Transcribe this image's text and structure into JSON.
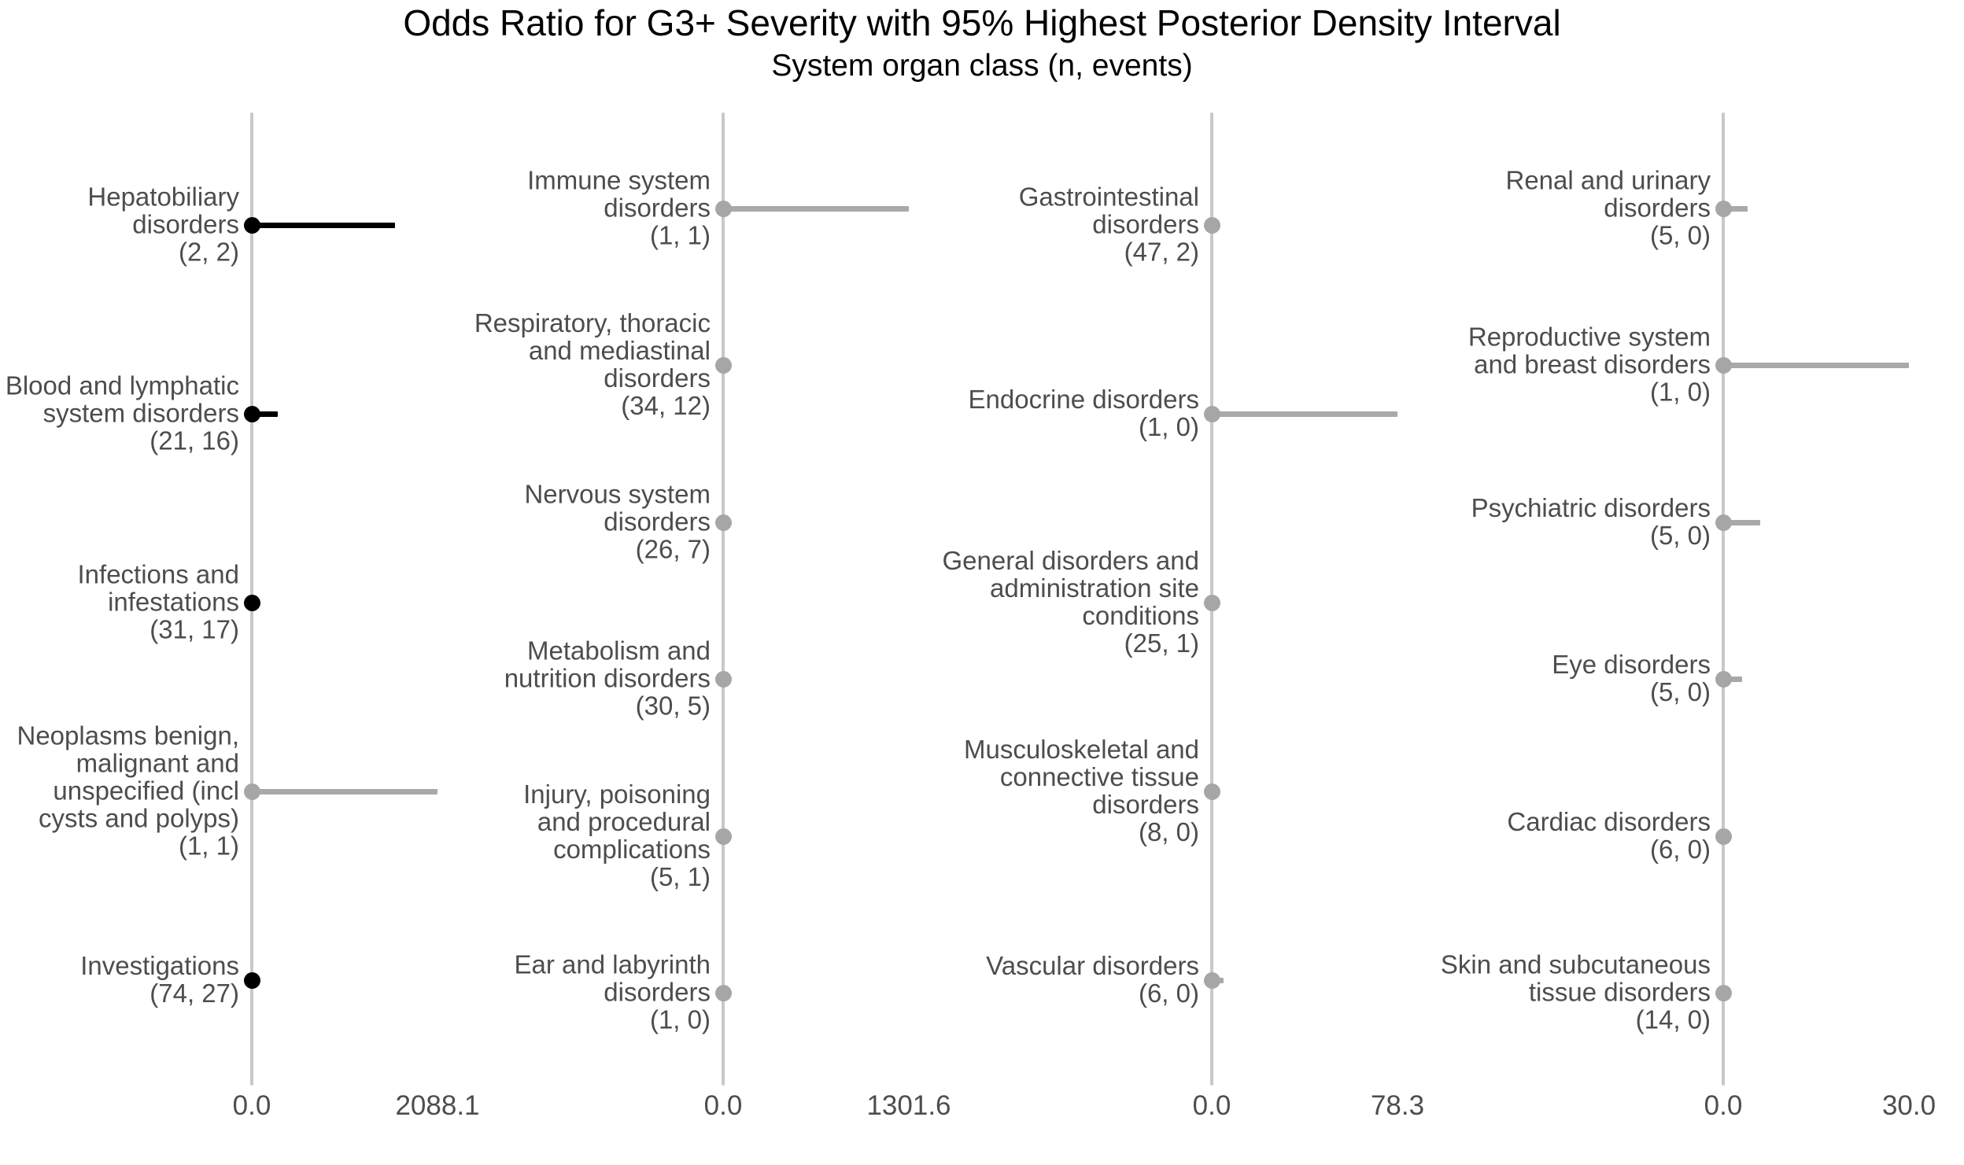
{
  "chart_data": {
    "type": "scatter",
    "variant": "forest-plot-dot-interval",
    "title": "Odds Ratio for G3+ Severity with 95% Highest Posterior Density Interval",
    "subtitle": "System organ class (n, events)",
    "x_tick_zero": "0.0",
    "xlabel": "",
    "ylabel": "",
    "grid": "off",
    "legend": "none",
    "note": "Four panels with independent x scales; each point sits at OR ~0 on the axis line with a one-sided 95% HPD interval extending right",
    "colors": {
      "point_black": "#000000",
      "point_gray": "#a6a6a6",
      "bar_gray": "#a9a9a9",
      "axis_line": "#c8c8c8",
      "label_text": "#4d4d4d"
    },
    "panels": [
      {
        "x_min": 0.0,
        "x_max": 2088.1,
        "x_max_label": "2088.1",
        "rows": [
          {
            "soc": "Hepatobiliary disorders",
            "n": 2,
            "events": 2,
            "or_point": 0.0,
            "hpd_upper": 1610,
            "color": "black",
            "label_lines": [
              "Hepatobiliary",
              "disorders",
              "(2, 2)"
            ]
          },
          {
            "soc": "Blood and lymphatic system disorders",
            "n": 21,
            "events": 16,
            "or_point": 0.0,
            "hpd_upper": 290,
            "color": "black",
            "label_lines": [
              "Blood and lymphatic",
              "system disorders",
              "(21, 16)"
            ]
          },
          {
            "soc": "Infections and infestations",
            "n": 31,
            "events": 17,
            "or_point": 0.0,
            "hpd_upper": 0,
            "color": "black",
            "label_lines": [
              "Infections and",
              "infestations",
              "(31, 17)"
            ]
          },
          {
            "soc": "Neoplasms benign, malignant and unspecified (incl cysts and polyps)",
            "n": 1,
            "events": 1,
            "or_point": 0.0,
            "hpd_upper": 2088.1,
            "color": "gray",
            "label_lines": [
              "Neoplasms benign,",
              "malignant and",
              "unspecified (incl",
              "cysts and polyps)",
              "(1, 1)"
            ]
          },
          {
            "soc": "Investigations",
            "n": 74,
            "events": 27,
            "or_point": 0.0,
            "hpd_upper": 0,
            "color": "black",
            "label_lines": [
              "Investigations",
              "(74, 27)"
            ]
          }
        ]
      },
      {
        "x_min": 0.0,
        "x_max": 1301.6,
        "x_max_label": "1301.6",
        "rows": [
          {
            "soc": "Immune system disorders",
            "n": 1,
            "events": 1,
            "or_point": 0.0,
            "hpd_upper": 1301.6,
            "color": "gray",
            "label_lines": [
              "Immune system",
              "disorders",
              "(1, 1)"
            ]
          },
          {
            "soc": "Respiratory, thoracic and mediastinal disorders",
            "n": 34,
            "events": 12,
            "or_point": 0.0,
            "hpd_upper": 0,
            "color": "gray",
            "label_lines": [
              "Respiratory, thoracic",
              "and mediastinal",
              "disorders",
              "(34, 12)"
            ]
          },
          {
            "soc": "Nervous system disorders",
            "n": 26,
            "events": 7,
            "or_point": 0.0,
            "hpd_upper": 0,
            "color": "gray",
            "label_lines": [
              "Nervous system",
              "disorders",
              "(26, 7)"
            ]
          },
          {
            "soc": "Metabolism and nutrition disorders",
            "n": 30,
            "events": 5,
            "or_point": 0.0,
            "hpd_upper": 0,
            "color": "gray",
            "label_lines": [
              "Metabolism and",
              "nutrition disorders",
              "(30, 5)"
            ]
          },
          {
            "soc": "Injury, poisoning and procedural complications",
            "n": 5,
            "events": 1,
            "or_point": 0.0,
            "hpd_upper": 0,
            "color": "gray",
            "label_lines": [
              "Injury, poisoning",
              "and procedural",
              "complications",
              "(5, 1)"
            ]
          },
          {
            "soc": "Ear and labyrinth disorders",
            "n": 1,
            "events": 0,
            "or_point": 0.0,
            "hpd_upper": 0,
            "color": "gray",
            "label_lines": [
              "Ear and labyrinth",
              "disorders",
              "(1, 0)"
            ]
          }
        ]
      },
      {
        "x_min": 0.0,
        "x_max": 78.3,
        "x_max_label": "78.3",
        "rows": [
          {
            "soc": "Gastrointestinal disorders",
            "n": 47,
            "events": 2,
            "or_point": 0.0,
            "hpd_upper": 0,
            "color": "gray",
            "label_lines": [
              "Gastrointestinal",
              "disorders",
              "(47, 2)"
            ]
          },
          {
            "soc": "Endocrine disorders",
            "n": 1,
            "events": 0,
            "or_point": 0.0,
            "hpd_upper": 78.3,
            "color": "gray",
            "label_lines": [
              "Endocrine disorders",
              "(1, 0)"
            ]
          },
          {
            "soc": "General disorders and administration site conditions",
            "n": 25,
            "events": 1,
            "or_point": 0.0,
            "hpd_upper": 0,
            "color": "gray",
            "label_lines": [
              "General disorders and",
              "administration site",
              "conditions",
              "(25, 1)"
            ]
          },
          {
            "soc": "Musculoskeletal and connective tissue disorders",
            "n": 8,
            "events": 0,
            "or_point": 0.0,
            "hpd_upper": 0,
            "color": "gray",
            "label_lines": [
              "Musculoskeletal and",
              "connective tissue",
              "disorders",
              "(8, 0)"
            ]
          },
          {
            "soc": "Vascular disorders",
            "n": 6,
            "events": 0,
            "or_point": 0.0,
            "hpd_upper": 5,
            "color": "gray",
            "label_lines": [
              "Vascular disorders",
              "(6, 0)"
            ]
          }
        ]
      },
      {
        "x_min": 0.0,
        "x_max": 30.0,
        "x_max_label": "30.0",
        "rows": [
          {
            "soc": "Renal and urinary disorders",
            "n": 5,
            "events": 0,
            "or_point": 0.0,
            "hpd_upper": 4,
            "color": "gray",
            "label_lines": [
              "Renal and urinary",
              "disorders",
              "(5, 0)"
            ]
          },
          {
            "soc": "Reproductive system and breast disorders",
            "n": 1,
            "events": 0,
            "or_point": 0.0,
            "hpd_upper": 30.0,
            "color": "gray",
            "label_lines": [
              "Reproductive system",
              "and breast disorders",
              "(1, 0)"
            ]
          },
          {
            "soc": "Psychiatric disorders",
            "n": 5,
            "events": 0,
            "or_point": 0.0,
            "hpd_upper": 6,
            "color": "gray",
            "label_lines": [
              "Psychiatric disorders",
              "(5, 0)"
            ]
          },
          {
            "soc": "Eye disorders",
            "n": 5,
            "events": 0,
            "or_point": 0.0,
            "hpd_upper": 3,
            "color": "gray",
            "label_lines": [
              "Eye disorders",
              "(5, 0)"
            ]
          },
          {
            "soc": "Cardiac disorders",
            "n": 6,
            "events": 0,
            "or_point": 0.0,
            "hpd_upper": 0,
            "color": "gray",
            "label_lines": [
              "Cardiac disorders",
              "(6, 0)"
            ]
          },
          {
            "soc": "Skin and subcutaneous tissue disorders",
            "n": 14,
            "events": 0,
            "or_point": 0.0,
            "hpd_upper": 0,
            "color": "gray",
            "label_lines": [
              "Skin and subcutaneous",
              "tissue disorders",
              "(14, 0)"
            ]
          }
        ]
      }
    ]
  }
}
